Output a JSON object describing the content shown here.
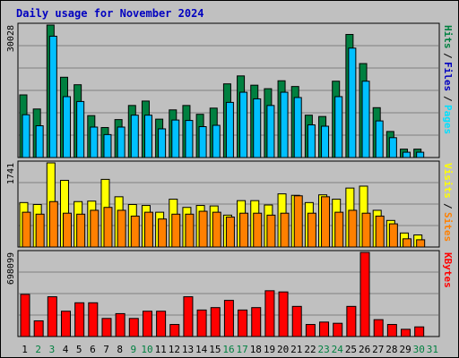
{
  "title": "Daily usage for November 2024",
  "colors": {
    "background": "#c0c0c0",
    "hits": "#008040",
    "files": "#00c0ff",
    "pages": "#00e0ff",
    "visits": "#ffff00",
    "sites": "#ff8000",
    "kbytes": "#ff0000",
    "weekday": "#000000",
    "weekend": "#008040",
    "title": "#0000c0"
  },
  "chart_data": [
    {
      "type": "bar",
      "panel": "top",
      "ymax_label": "30028",
      "ylim": [
        0,
        30028
      ],
      "vertical_labels": [
        {
          "text": "Hits",
          "color": "#008040"
        },
        {
          "text": "Files",
          "color": "#0000c0"
        },
        {
          "text": "Pages",
          "color": "#00e0ff"
        }
      ],
      "categories": [
        "1",
        "2",
        "3",
        "4",
        "5",
        "6",
        "7",
        "8",
        "9",
        "10",
        "11",
        "12",
        "13",
        "14",
        "15",
        "16",
        "17",
        "18",
        "19",
        "20",
        "21",
        "22",
        "23",
        "24",
        "25",
        "26",
        "27",
        "28",
        "29",
        "30",
        "31"
      ],
      "series": [
        {
          "name": "Hits",
          "values": [
            14200,
            11000,
            30028,
            18200,
            16500,
            9500,
            6800,
            8600,
            11800,
            12800,
            8700,
            10800,
            11800,
            9800,
            11200,
            16700,
            18500,
            16400,
            15600,
            17400,
            16100,
            9600,
            9300,
            17300,
            27900,
            21300,
            11300,
            5900,
            1900,
            1900,
            0
          ]
        },
        {
          "name": "Files",
          "values": [
            9700,
            7200,
            27500,
            13800,
            12700,
            6900,
            5200,
            6900,
            9600,
            9600,
            6500,
            8500,
            8400,
            7000,
            7300,
            12500,
            14800,
            13300,
            11800,
            14800,
            13600,
            7400,
            7100,
            13800,
            24800,
            17300,
            8300,
            4500,
            1200,
            1200,
            0
          ]
        },
        {
          "name": "Pages",
          "values": [
            9500,
            7000,
            27300,
            13600,
            12500,
            6700,
            5000,
            6700,
            9400,
            9400,
            6300,
            8300,
            8200,
            6800,
            7100,
            12300,
            14600,
            13100,
            11600,
            14600,
            13400,
            7200,
            6900,
            13600,
            24600,
            17100,
            8100,
            4300,
            1000,
            1000,
            0
          ]
        }
      ]
    },
    {
      "type": "bar",
      "panel": "middle",
      "ymax_label": "1741",
      "ylim": [
        0,
        1741
      ],
      "vertical_labels": [
        {
          "text": "Visits",
          "color": "#ffff00"
        },
        {
          "text": "Sites",
          "color": "#ff8000"
        }
      ],
      "categories": [
        "1",
        "2",
        "3",
        "4",
        "5",
        "6",
        "7",
        "8",
        "9",
        "10",
        "11",
        "12",
        "13",
        "14",
        "15",
        "16",
        "17",
        "18",
        "19",
        "20",
        "21",
        "22",
        "23",
        "24",
        "25",
        "26",
        "27",
        "28",
        "29",
        "30",
        "31"
      ],
      "series": [
        {
          "name": "Visits",
          "values": [
            920,
            880,
            1741,
            1380,
            940,
            950,
            1400,
            1040,
            880,
            860,
            720,
            990,
            820,
            860,
            850,
            660,
            960,
            960,
            870,
            1100,
            1070,
            920,
            1080,
            990,
            1220,
            1260,
            760,
            550,
            290,
            250,
            0
          ]
        },
        {
          "name": "Sites",
          "values": [
            720,
            680,
            940,
            700,
            680,
            760,
            820,
            760,
            640,
            720,
            580,
            680,
            680,
            740,
            720,
            620,
            700,
            700,
            660,
            700,
            1060,
            700,
            1040,
            720,
            760,
            700,
            640,
            480,
            170,
            150,
            0
          ]
        }
      ]
    },
    {
      "type": "bar",
      "panel": "bottom",
      "ymax_label": "698099",
      "ylim": [
        0,
        698099
      ],
      "vertical_labels": [
        {
          "text": "KBytes",
          "color": "#ff0000"
        }
      ],
      "categories": [
        "1",
        "2",
        "3",
        "4",
        "5",
        "6",
        "7",
        "8",
        "9",
        "10",
        "11",
        "12",
        "13",
        "14",
        "15",
        "16",
        "17",
        "18",
        "19",
        "20",
        "21",
        "22",
        "23",
        "24",
        "25",
        "26",
        "27",
        "28",
        "29",
        "30",
        "31"
      ],
      "series": [
        {
          "name": "KBytes",
          "values": [
            350000,
            130000,
            330000,
            210000,
            280000,
            280000,
            150000,
            190000,
            150000,
            210000,
            210000,
            100000,
            330000,
            220000,
            240000,
            300000,
            220000,
            240000,
            380000,
            370000,
            250000,
            100000,
            120000,
            110000,
            250000,
            698099,
            140000,
            100000,
            60000,
            80000,
            0
          ]
        }
      ]
    }
  ],
  "weekend_days": [
    2,
    3,
    9,
    10,
    16,
    17,
    23,
    24,
    30,
    31
  ]
}
